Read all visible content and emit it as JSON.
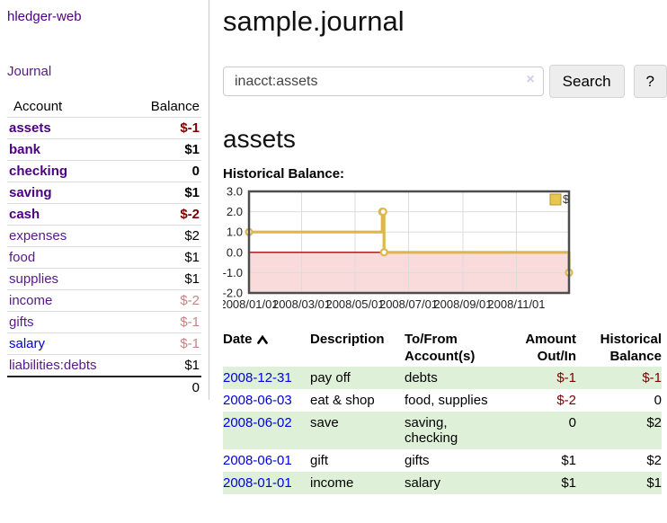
{
  "sidebar": {
    "app_title": "hledger-web",
    "journal_link": "Journal",
    "accounts_table": {
      "headers": {
        "account": "Account",
        "balance": "Balance"
      },
      "rows": [
        {
          "name": "assets",
          "depth": 0,
          "in_query": true,
          "link_color": "purple",
          "balance": "$-1",
          "balance_tone": "neg-strong"
        },
        {
          "name": "bank",
          "depth": 1,
          "in_query": true,
          "link_color": "purple",
          "balance": "$1",
          "balance_tone": "normal"
        },
        {
          "name": "checking",
          "depth": 2,
          "in_query": true,
          "link_color": "purple",
          "balance": "0",
          "balance_tone": "normal"
        },
        {
          "name": "saving",
          "depth": 2,
          "in_query": true,
          "link_color": "purple",
          "balance": "$1",
          "balance_tone": "normal"
        },
        {
          "name": "cash",
          "depth": 1,
          "in_query": true,
          "link_color": "purple",
          "balance": "$-2",
          "balance_tone": "neg-strong"
        },
        {
          "name": "expenses",
          "depth": 0,
          "in_query": false,
          "link_color": "purple",
          "balance": "$2",
          "balance_tone": "normal"
        },
        {
          "name": "food",
          "depth": 1,
          "in_query": false,
          "link_color": "purple",
          "balance": "$1",
          "balance_tone": "normal"
        },
        {
          "name": "supplies",
          "depth": 1,
          "in_query": false,
          "link_color": "purple",
          "balance": "$1",
          "balance_tone": "normal"
        },
        {
          "name": "income",
          "depth": 0,
          "in_query": false,
          "link_color": "purple",
          "balance": "$-2",
          "balance_tone": "neg-soft"
        },
        {
          "name": "gifts",
          "depth": 1,
          "in_query": false,
          "link_color": "purple",
          "balance": "$-1",
          "balance_tone": "neg-soft"
        },
        {
          "name": "salary",
          "depth": 1,
          "in_query": false,
          "link_color": "blue",
          "balance": "$-1",
          "balance_tone": "neg-soft"
        },
        {
          "name": "liabilities:debts",
          "depth": 0,
          "in_query": false,
          "link_color": "purple",
          "balance": "$1",
          "balance_tone": "normal"
        }
      ],
      "total": "0"
    }
  },
  "header": {
    "title": "sample.journal",
    "search": {
      "value": "inacct:assets",
      "clear_icon": "×",
      "button_label": "Search",
      "help_label": "?"
    }
  },
  "main": {
    "account_heading": "assets",
    "chart_title": "Historical Balance:"
  },
  "chart_data": {
    "type": "line",
    "step": true,
    "title": "Historical Balance",
    "series": [
      {
        "name": "$",
        "color": "#ddb74d",
        "x": [
          "2008-01-01",
          "2008-06-01",
          "2008-06-02",
          "2008-06-03",
          "2008-12-31"
        ],
        "y": [
          1,
          2,
          2,
          0,
          -1
        ]
      }
    ],
    "xlim": [
      "2008-01-01",
      "2008-12-31"
    ],
    "ylim": [
      -2,
      3
    ],
    "yticks": [
      3.0,
      2.0,
      1.0,
      0.0,
      -1.0,
      -2.0
    ],
    "xticks": [
      "2008/01/01",
      "2008/03/01",
      "2008/05/01",
      "2008/07/01",
      "2008/09/01",
      "2008/11/01"
    ],
    "grid": true,
    "legend_position": "top-right",
    "legend_label": "$",
    "legend_fill": "#e9c64e",
    "legend_border": "#b3952f",
    "negative_region_fill": "#f9dbdb",
    "zero_line_color": "#991111",
    "plot_border_color": "#4d4d4d",
    "grid_color": "#dcdcdc"
  },
  "register_table": {
    "headers": [
      "Date",
      "Description",
      "To/From Account(s)",
      "Amount Out/In",
      "Historical Balance"
    ],
    "rows": [
      {
        "date": "2008-12-31",
        "description": "pay off",
        "accounts": "debts",
        "amount": "$-1",
        "amount_neg": true,
        "balance": "$-1",
        "balance_neg": true,
        "striped": true
      },
      {
        "date": "2008-06-03",
        "description": "eat & shop",
        "accounts": "food, supplies",
        "amount": "$-2",
        "amount_neg": true,
        "balance": "0",
        "balance_neg": false,
        "striped": false
      },
      {
        "date": "2008-06-02",
        "description": "save",
        "accounts": "saving, checking",
        "amount": "0",
        "amount_neg": false,
        "balance": "$2",
        "balance_neg": false,
        "striped": true
      },
      {
        "date": "2008-06-01",
        "description": "gift",
        "accounts": "gifts",
        "amount": "$1",
        "amount_neg": false,
        "balance": "$2",
        "balance_neg": false,
        "striped": false
      },
      {
        "date": "2008-01-01",
        "description": "income",
        "accounts": "salary",
        "amount": "$1",
        "amount_neg": false,
        "balance": "$1",
        "balance_neg": false,
        "striped": true
      }
    ]
  }
}
